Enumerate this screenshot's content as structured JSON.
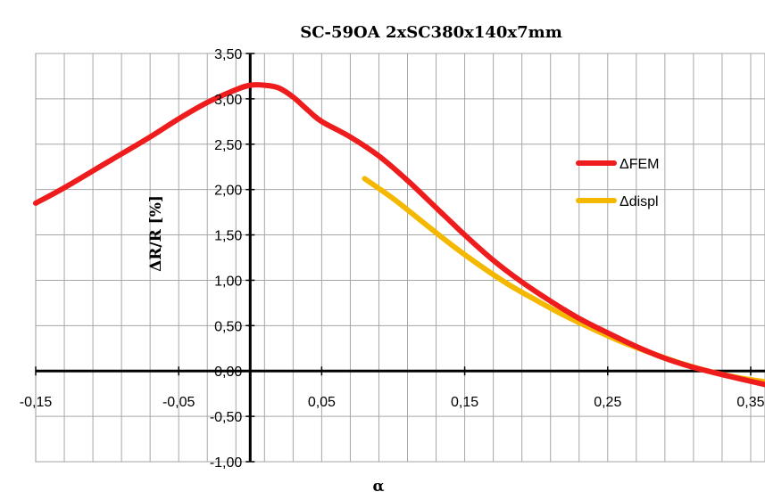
{
  "chart_data": {
    "type": "line",
    "title": "SC-59OA 2xSC380x140x7mm",
    "xlabel": "α",
    "ylabel": "ΔR/R [%]",
    "xlim": [
      -0.15,
      0.36
    ],
    "ylim": [
      -1.0,
      3.5
    ],
    "x_ticks": [
      -0.15,
      -0.05,
      0.05,
      0.15,
      0.25,
      0.35
    ],
    "x_tick_labels": [
      "-0,15",
      "-0,05",
      "0,05",
      "0,15",
      "0,25",
      "0,35"
    ],
    "y_ticks": [
      -1.0,
      -0.5,
      0.0,
      0.5,
      1.0,
      1.5,
      2.0,
      2.5,
      3.0,
      3.5
    ],
    "y_tick_labels": [
      "-1,00",
      "-0,50",
      "0,00",
      "0,50",
      "1,00",
      "1,50",
      "2,00",
      "2,50",
      "3,00",
      "3,50"
    ],
    "grid": true,
    "grid_minor_x_step": 0.02,
    "legend_position": "right",
    "series": [
      {
        "name": "ΔFEM",
        "color": "#ee1c1c",
        "x": [
          -0.15,
          -0.13,
          -0.1,
          -0.07,
          -0.05,
          -0.03,
          -0.01,
          0.0,
          0.01,
          0.02,
          0.03,
          0.04,
          0.05,
          0.07,
          0.09,
          0.11,
          0.13,
          0.15,
          0.17,
          0.19,
          0.21,
          0.23,
          0.25,
          0.27,
          0.29,
          0.31,
          0.33,
          0.36
        ],
        "values": [
          1.85,
          2.02,
          2.3,
          2.58,
          2.78,
          2.96,
          3.1,
          3.15,
          3.15,
          3.12,
          3.02,
          2.88,
          2.75,
          2.58,
          2.37,
          2.1,
          1.8,
          1.5,
          1.22,
          0.98,
          0.77,
          0.58,
          0.42,
          0.27,
          0.14,
          0.04,
          -0.04,
          -0.15
        ]
      },
      {
        "name": "Δdispl",
        "color": "#f5b800",
        "x": [
          0.08,
          0.1,
          0.12,
          0.14,
          0.16,
          0.18,
          0.2,
          0.22,
          0.24,
          0.26,
          0.28,
          0.3,
          0.32,
          0.34,
          0.36
        ],
        "values": [
          2.12,
          1.9,
          1.65,
          1.4,
          1.17,
          0.96,
          0.78,
          0.61,
          0.46,
          0.32,
          0.2,
          0.09,
          0.0,
          -0.07,
          -0.12
        ]
      }
    ]
  }
}
